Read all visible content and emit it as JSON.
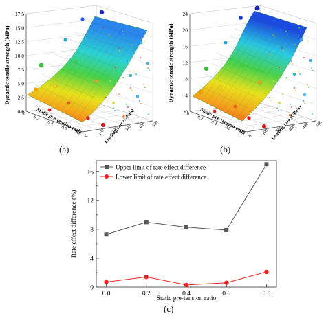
{
  "figure": {
    "label_a": "(a)",
    "label_b": "(b)",
    "label_c": "(c)"
  },
  "chart_data": [
    {
      "id": "a",
      "type": "surface3d",
      "zlabel": "Dynamic tensile strength (MPa)",
      "xlabel": "Static pre-tension ratio",
      "ylabel": "Loading rate (GPa/s)",
      "zticks": [
        "0.0",
        "2.5",
        "5.0",
        "7.5",
        "10.0",
        "12.5",
        "15.0",
        "17.5"
      ],
      "xticks": [
        "0.0",
        "0.2",
        "0.4",
        "0.6",
        "0.8"
      ],
      "yticks": [
        "0",
        "100",
        "200",
        "300",
        "400",
        "500"
      ],
      "zlim": [
        0,
        17.5
      ]
    },
    {
      "id": "b",
      "type": "surface3d",
      "zlabel": "Dynamic tensile strength (MPa)",
      "xlabel": "Static pre-tension ratio",
      "ylabel": "Loading rate (GPa/s)",
      "zticks": [
        "0",
        "4",
        "8",
        "12",
        "16",
        "20",
        "24"
      ],
      "xticks": [
        "0.0",
        "0.2",
        "0.4",
        "0.6",
        "0.8"
      ],
      "yticks": [
        "0",
        "100",
        "200",
        "300",
        "400",
        "500"
      ],
      "zlim": [
        0,
        24
      ]
    },
    {
      "id": "c",
      "type": "line",
      "xlabel": "Static pre-tension ratio",
      "ylabel": "Rate effect difference (%)",
      "x": [
        0.0,
        0.2,
        0.4,
        0.6,
        0.8
      ],
      "xticks": [
        "0.0",
        "0.2",
        "0.4",
        "0.6",
        "0.8"
      ],
      "yticks": [
        "0",
        "4",
        "8",
        "12",
        "16"
      ],
      "xlim": [
        -0.05,
        0.85
      ],
      "ylim": [
        0,
        17.5
      ],
      "legend_position": "top-left",
      "series": [
        {
          "name": "Upper limit of rate effect difference",
          "values": [
            7.3,
            9.0,
            8.3,
            7.9,
            17.0
          ],
          "color": "#555555",
          "marker": "square"
        },
        {
          "name": "Lower limit of rate effect difference",
          "values": [
            0.7,
            1.4,
            0.3,
            0.6,
            2.1
          ],
          "color": "#ee2020",
          "marker": "circle"
        }
      ]
    }
  ]
}
